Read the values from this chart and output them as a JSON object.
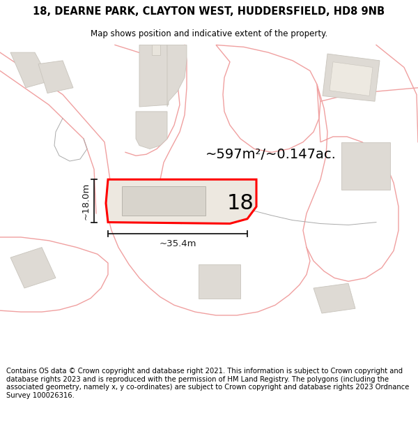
{
  "title_line1": "18, DEARNE PARK, CLAYTON WEST, HUDDERSFIELD, HD8 9NB",
  "title_line2": "Map shows position and indicative extent of the property.",
  "footer_text": "Contains OS data © Crown copyright and database right 2021. This information is subject to Crown copyright and database rights 2023 and is reproduced with the permission of HM Land Registry. The polygons (including the associated geometry, namely x, y co-ordinates) are subject to Crown copyright and database rights 2023 Ordnance Survey 100026316.",
  "area_label": "~597m²/~0.147ac.",
  "height_label": "~18.0m",
  "width_label": "~35.4m",
  "plot_number": "18",
  "map_bg": "#ffffff",
  "plot_fill": "#ede8e0",
  "plot_outline": "#ff0000",
  "road_color": "#f0a0a0",
  "building_fill": "#dedad4",
  "building_outline": "#c8c4bc",
  "dim_color": "#1a1a1a",
  "title_fontsize": 10.5,
  "subtitle_fontsize": 8.5,
  "footer_fontsize": 7.2,
  "plot_number_fontsize": 22,
  "area_fontsize": 14,
  "dim_fontsize": 9.5,
  "road_lw": 1.0,
  "build_lw": 0.6,
  "plot_lw": 2.2
}
